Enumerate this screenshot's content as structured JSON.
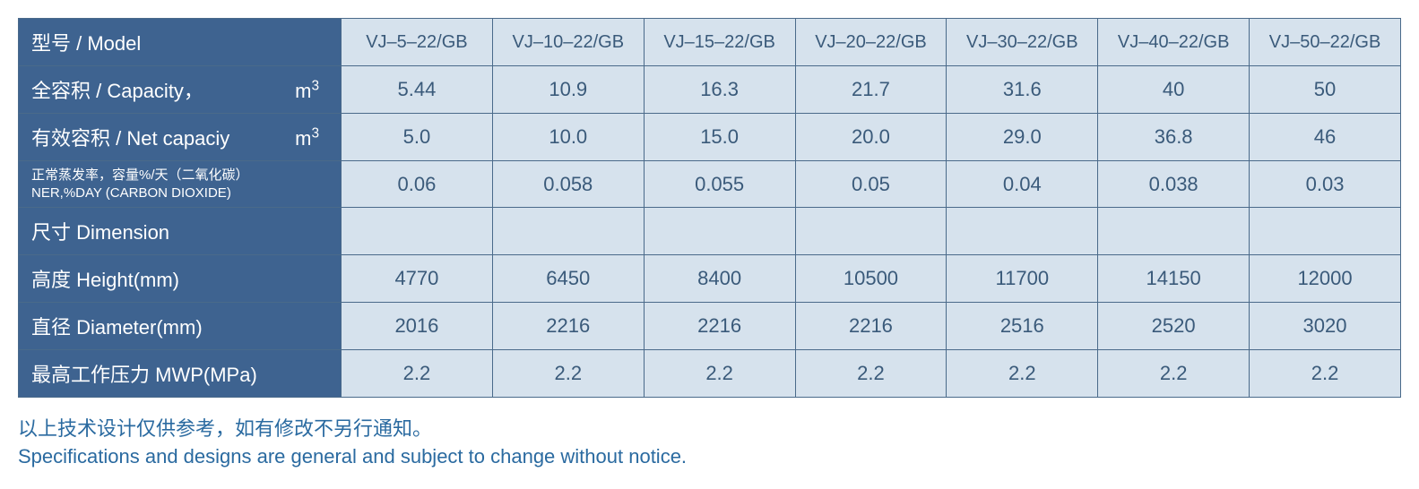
{
  "table": {
    "label_col_width": 360,
    "colors": {
      "label_bg": "#3e6390",
      "label_text": "#ffffff",
      "data_bg": "#d6e2ed",
      "data_text": "#3a5a7a",
      "border": "#4a6a8a",
      "footnote_text": "#2a6aa0"
    },
    "fontsize": {
      "label": 22,
      "label_small": 15,
      "data": 22,
      "header": 20,
      "footnote": 22
    },
    "columns": [
      "VJ–5–22/GB",
      "VJ–10–22/GB",
      "VJ–15–22/GB",
      "VJ–20–22/GB",
      "VJ–30–22/GB",
      "VJ–40–22/GB",
      "VJ–50–22/GB"
    ],
    "rows": [
      {
        "label": "型号 / Model",
        "type": "header"
      },
      {
        "label_main": "全容积 / Capacity，",
        "label_unit": "m",
        "label_sup": "3",
        "values": [
          "5.44",
          "10.9",
          "16.3",
          "21.7",
          "31.6",
          "40",
          "50"
        ]
      },
      {
        "label_main": "有效容积 / Net capaciy",
        "label_unit": "m",
        "label_sup": "3",
        "values": [
          "5.0",
          "10.0",
          "15.0",
          "20.0",
          "29.0",
          "36.8",
          "46"
        ]
      },
      {
        "label_line1": "正常蒸发率，容量%/天（二氧化碳）",
        "label_line2": "NER,%DAY (CARBON DIOXIDE)",
        "small": true,
        "values": [
          "0.06",
          "0.058",
          "0.055",
          "0.05",
          "0.04",
          "0.038",
          "0.03"
        ]
      },
      {
        "label": "尺寸 Dimension",
        "values": [
          "",
          "",
          "",
          "",
          "",
          "",
          ""
        ]
      },
      {
        "label": "高度 Height(mm)",
        "values": [
          "4770",
          "6450",
          "8400",
          "10500",
          "11700",
          "14150",
          "12000"
        ]
      },
      {
        "label": "直径 Diameter(mm)",
        "values": [
          "2016",
          "2216",
          "2216",
          "2216",
          "2516",
          "2520",
          "3020"
        ]
      },
      {
        "label": "最高工作压力 MWP(MPa)",
        "values": [
          "2.2",
          "2.2",
          "2.2",
          "2.2",
          "2.2",
          "2.2",
          "2.2"
        ]
      }
    ]
  },
  "footnote": {
    "line1": "以上技术设计仅供参考，如有修改不另行通知。",
    "line2": "Specifications and designs are general and subject to change without notice."
  }
}
